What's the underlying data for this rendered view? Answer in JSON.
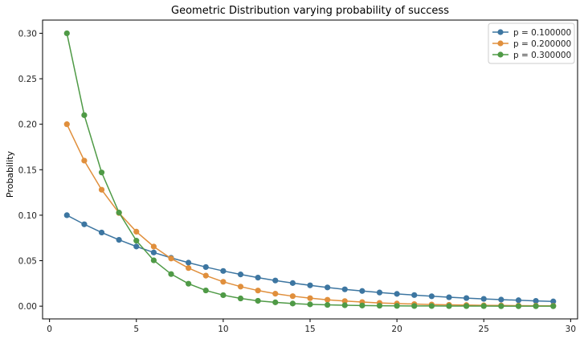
{
  "chart_data": {
    "type": "line",
    "title": "Geometric Distribution varying probability of success",
    "xlabel": "",
    "ylabel": "Probability",
    "xlim": [
      -0.4,
      30.4
    ],
    "ylim": [
      -0.014,
      0.3145
    ],
    "xticks": [
      0,
      5,
      10,
      15,
      20,
      25,
      30
    ],
    "yticks": [
      0.0,
      0.05,
      0.1,
      0.15,
      0.2,
      0.25,
      0.3
    ],
    "xtick_labels": [
      "0",
      "5",
      "10",
      "15",
      "20",
      "25",
      "30"
    ],
    "ytick_labels": [
      "0.00",
      "0.05",
      "0.10",
      "0.15",
      "0.20",
      "0.25",
      "0.30"
    ],
    "grid": false,
    "legend_position": "top-right",
    "x": [
      1,
      2,
      3,
      4,
      5,
      6,
      7,
      8,
      9,
      10,
      11,
      12,
      13,
      14,
      15,
      16,
      17,
      18,
      19,
      20,
      21,
      22,
      23,
      24,
      25,
      26,
      27,
      28,
      29
    ],
    "series": [
      {
        "name": "p = 0.100000",
        "color": "#3d76a1",
        "values": [
          0.1,
          0.09,
          0.081,
          0.0729,
          0.0656,
          0.059,
          0.0531,
          0.0478,
          0.043,
          0.0387,
          0.0349,
          0.0314,
          0.0282,
          0.0254,
          0.0229,
          0.0206,
          0.0185,
          0.0167,
          0.015,
          0.0135,
          0.0122,
          0.0109,
          0.0098,
          0.0089,
          0.008,
          0.0072,
          0.0065,
          0.0058,
          0.0052
        ]
      },
      {
        "name": "p = 0.200000",
        "color": "#e08f3c",
        "values": [
          0.2,
          0.16,
          0.128,
          0.1024,
          0.0819,
          0.0655,
          0.0524,
          0.0419,
          0.0336,
          0.0268,
          0.0215,
          0.0172,
          0.0137,
          0.011,
          0.0088,
          0.007,
          0.0056,
          0.0045,
          0.0036,
          0.0029,
          0.0023,
          0.0018,
          0.0015,
          0.0012,
          0.0009,
          0.0008,
          0.0006,
          0.0005,
          0.0004
        ]
      },
      {
        "name": "p = 0.300000",
        "color": "#4f9a46",
        "values": [
          0.3,
          0.21,
          0.147,
          0.1029,
          0.072,
          0.0504,
          0.0353,
          0.0247,
          0.0173,
          0.0121,
          0.0085,
          0.0059,
          0.0042,
          0.0029,
          0.002,
          0.0014,
          0.001,
          0.0007,
          0.0005,
          0.0003,
          0.0002,
          0.0002,
          0.0001,
          0.0001,
          0.0001,
          0.0,
          0.0,
          0.0,
          0.0
        ]
      }
    ]
  }
}
